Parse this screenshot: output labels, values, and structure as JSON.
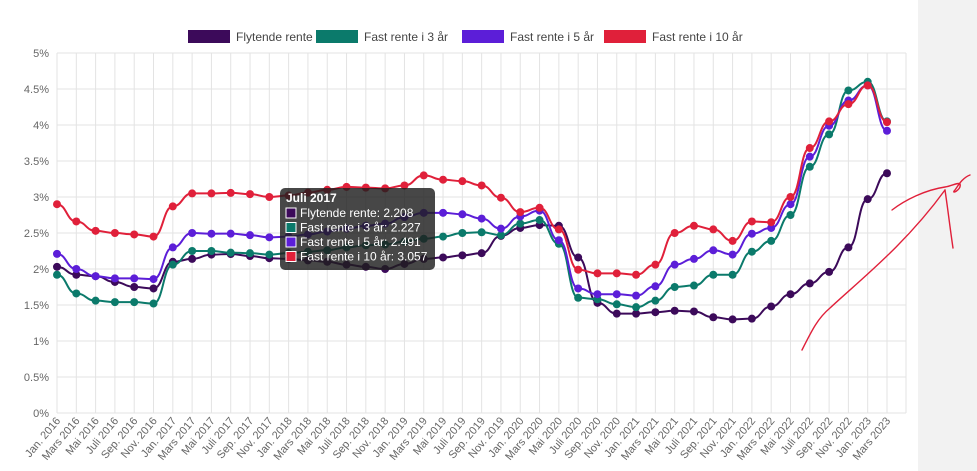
{
  "chart_data": {
    "type": "line",
    "title": "",
    "xlabel": "",
    "ylabel": "",
    "ylim": [
      0,
      5
    ],
    "yticks": [
      "0%",
      "0.5%",
      "1%",
      "1.5%",
      "2%",
      "2.5%",
      "3%",
      "3.5%",
      "4%",
      "4.5%",
      "5%"
    ],
    "grid": true,
    "legend_position": "top",
    "categories": [
      "Jan. 2016",
      "Mars 2016",
      "Mai 2016",
      "Juli 2016",
      "Sep. 2016",
      "Nov. 2016",
      "Jan. 2017",
      "Mars 2017",
      "Mai 2017",
      "Juli 2017",
      "Sep. 2017",
      "Nov. 2017",
      "Jan. 2018",
      "Mars 2018",
      "Mai 2018",
      "Juli 2018",
      "Sep. 2018",
      "Nov. 2018",
      "Jan. 2019",
      "Mars 2019",
      "Mai 2019",
      "Juli 2019",
      "Sep. 2019",
      "Nov. 2019",
      "Jan. 2020",
      "Mars 2020",
      "Mai 2020",
      "Juli 2020",
      "Sep. 2020",
      "Nov. 2020",
      "Jan. 2021",
      "Mars 2021",
      "Mai 2021",
      "Juli 2021",
      "Sep. 2021",
      "Nov. 2021",
      "Jan. 2022",
      "Mars 2022",
      "Mai 2022",
      "Juli 2022",
      "Sep. 2022",
      "Nov. 2022",
      "Jan. 2023",
      "Mars 2023"
    ],
    "series": [
      {
        "name": "Flytende rente",
        "color": "#3c0a5a",
        "values": [
          2.03,
          1.92,
          1.9,
          1.82,
          1.75,
          1.73,
          2.1,
          2.14,
          2.2,
          2.208,
          2.18,
          2.15,
          2.14,
          2.12,
          2.1,
          2.06,
          2.03,
          2.0,
          2.07,
          2.14,
          2.16,
          2.19,
          2.22,
          2.46,
          2.57,
          2.61,
          2.6,
          2.16,
          1.53,
          1.38,
          1.38,
          1.4,
          1.42,
          1.41,
          1.33,
          1.3,
          1.31,
          1.48,
          1.65,
          1.8,
          1.96,
          2.3,
          2.97,
          3.33
        ]
      },
      {
        "name": "Fast rente i 3 år",
        "color": "#0b7a6b",
        "values": [
          1.92,
          1.66,
          1.56,
          1.54,
          1.54,
          1.52,
          2.06,
          2.25,
          2.25,
          2.227,
          2.22,
          2.2,
          2.22,
          2.24,
          2.26,
          2.3,
          2.33,
          2.34,
          2.38,
          2.42,
          2.45,
          2.5,
          2.51,
          2.47,
          2.63,
          2.68,
          2.35,
          1.6,
          1.58,
          1.51,
          1.47,
          1.56,
          1.75,
          1.77,
          1.92,
          1.92,
          2.24,
          2.39,
          2.75,
          3.42,
          3.87,
          4.48,
          4.6,
          4.05
        ]
      },
      {
        "name": "Fast rente i 5 år",
        "color": "#5c1ed8",
        "values": [
          2.21,
          2.0,
          1.9,
          1.87,
          1.87,
          1.86,
          2.3,
          2.5,
          2.49,
          2.491,
          2.47,
          2.44,
          2.45,
          2.48,
          2.52,
          2.56,
          2.6,
          2.63,
          2.72,
          2.78,
          2.78,
          2.76,
          2.7,
          2.56,
          2.73,
          2.81,
          2.4,
          1.73,
          1.65,
          1.65,
          1.63,
          1.76,
          2.06,
          2.14,
          2.26,
          2.2,
          2.49,
          2.57,
          2.9,
          3.56,
          3.99,
          4.34,
          4.55,
          3.92
        ]
      },
      {
        "name": "Fast rente i 10 år",
        "color": "#e0203a",
        "values": [
          2.9,
          2.66,
          2.53,
          2.5,
          2.48,
          2.45,
          2.87,
          3.05,
          3.05,
          3.057,
          3.04,
          3.0,
          3.02,
          3.06,
          3.1,
          3.14,
          3.13,
          3.12,
          3.16,
          3.3,
          3.24,
          3.22,
          3.16,
          2.99,
          2.79,
          2.85,
          2.55,
          1.99,
          1.94,
          1.94,
          1.92,
          2.06,
          2.5,
          2.6,
          2.55,
          2.39,
          2.66,
          2.65,
          3.0,
          3.68,
          4.05,
          4.29,
          4.55,
          4.04
        ]
      }
    ],
    "tooltip": {
      "title": "Juli 2017",
      "lines": [
        "Flytende rente: 2.208",
        "Fast rente i 3 år: 2.227",
        "Fast rente i 5 år: 2.491",
        "Fast rente i 10 år: 3.057"
      ]
    },
    "annotation": {
      "type": "hand-drawn-arrow",
      "color": "#e0203a"
    }
  }
}
